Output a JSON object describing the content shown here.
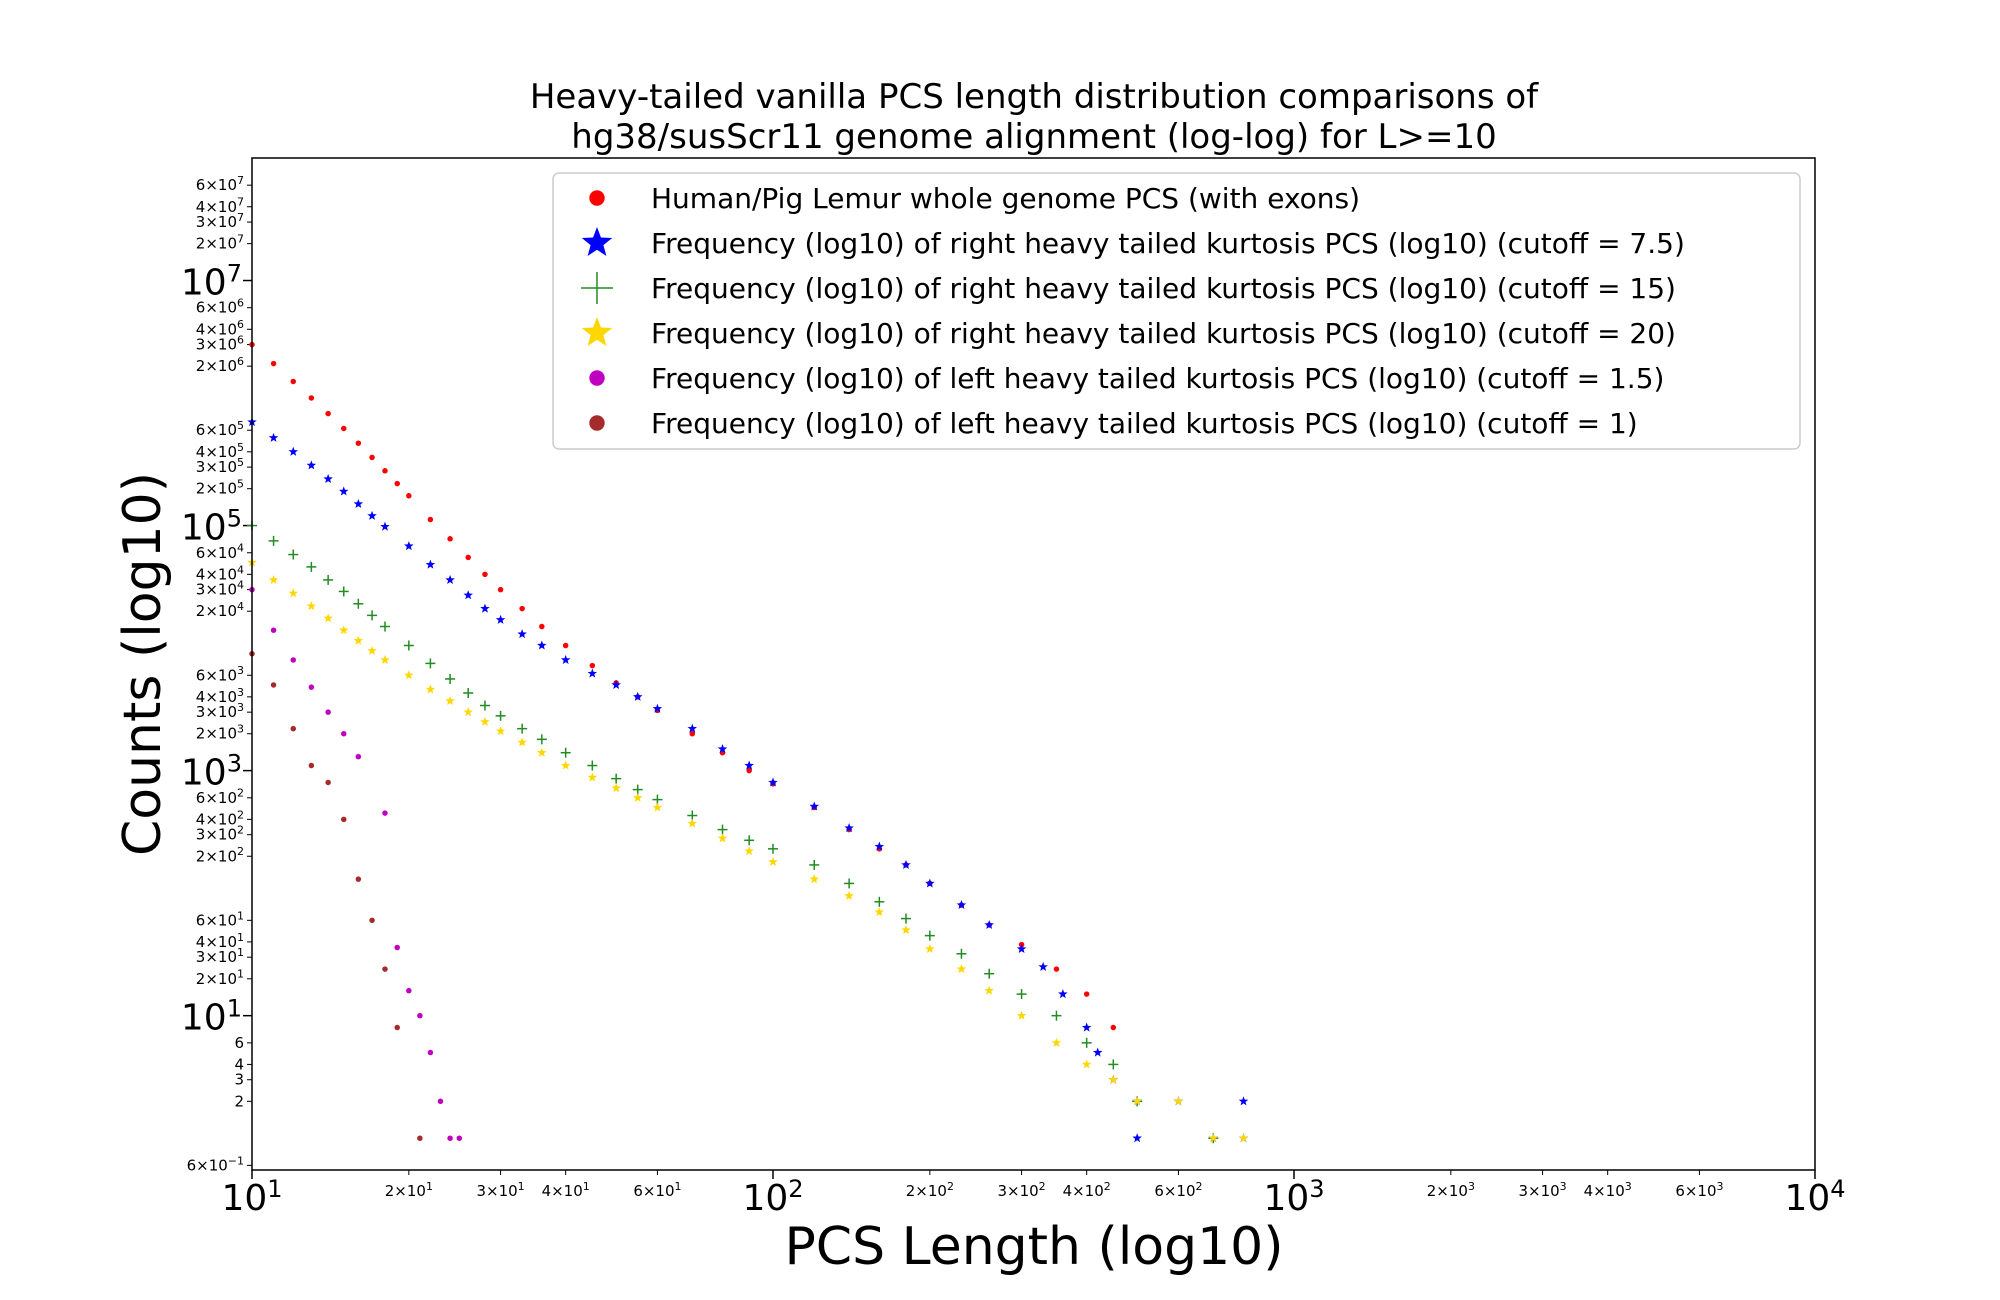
{
  "chart_data": {
    "type": "scatter",
    "title": [
      "Heavy-tailed vanilla PCS length distribution comparisons of",
      "hg38/susScr11 genome alignment (log-log) for L>=10"
    ],
    "xlabel": "PCS Length (log10)",
    "ylabel": "Counts (log10)",
    "xscale": "log",
    "yscale": "log",
    "xlim": [
      10,
      10000
    ],
    "ylim": [
      0.55,
      100000000
    ],
    "legend_position": "top-right",
    "x_ticks_major": [
      {
        "value": 10,
        "base": "10",
        "exp": "1"
      },
      {
        "value": 100,
        "base": "10",
        "exp": "2"
      },
      {
        "value": 1000,
        "base": "10",
        "exp": "3"
      },
      {
        "value": 10000,
        "base": "10",
        "exp": "4"
      }
    ],
    "x_ticks_minor": [
      {
        "value": 20,
        "label": "2×10",
        "exp": "1"
      },
      {
        "value": 30,
        "label": "3×10",
        "exp": "1"
      },
      {
        "value": 40,
        "label": "4×10",
        "exp": "1"
      },
      {
        "value": 60,
        "label": "6×10",
        "exp": "1"
      },
      {
        "value": 200,
        "label": "2×10",
        "exp": "2"
      },
      {
        "value": 300,
        "label": "3×10",
        "exp": "2"
      },
      {
        "value": 400,
        "label": "4×10",
        "exp": "2"
      },
      {
        "value": 600,
        "label": "6×10",
        "exp": "2"
      },
      {
        "value": 2000,
        "label": "2×10",
        "exp": "3"
      },
      {
        "value": 3000,
        "label": "3×10",
        "exp": "3"
      },
      {
        "value": 4000,
        "label": "4×10",
        "exp": "3"
      },
      {
        "value": 6000,
        "label": "6×10",
        "exp": "3"
      }
    ],
    "y_ticks_major": [
      {
        "value": 10,
        "base": "10",
        "exp": "1"
      },
      {
        "value": 1000,
        "base": "10",
        "exp": "3"
      },
      {
        "value": 100000,
        "base": "10",
        "exp": "5"
      },
      {
        "value": 10000000,
        "base": "10",
        "exp": "7"
      }
    ],
    "y_ticks_minor": [
      {
        "value": 0.6,
        "label": "6×10",
        "exp": "−1"
      },
      {
        "value": 2,
        "label": "2",
        "exp": ""
      },
      {
        "value": 3,
        "label": "3",
        "exp": ""
      },
      {
        "value": 4,
        "label": "4",
        "exp": ""
      },
      {
        "value": 6,
        "label": "6",
        "exp": ""
      },
      {
        "value": 20,
        "label": "2×10",
        "exp": "1"
      },
      {
        "value": 30,
        "label": "3×10",
        "exp": "1"
      },
      {
        "value": 40,
        "label": "4×10",
        "exp": "1"
      },
      {
        "value": 60,
        "label": "6×10",
        "exp": "1"
      },
      {
        "value": 200,
        "label": "2×10",
        "exp": "2"
      },
      {
        "value": 300,
        "label": "3×10",
        "exp": "2"
      },
      {
        "value": 400,
        "label": "4×10",
        "exp": "2"
      },
      {
        "value": 600,
        "label": "6×10",
        "exp": "2"
      },
      {
        "value": 2000,
        "label": "2×10",
        "exp": "3"
      },
      {
        "value": 3000,
        "label": "3×10",
        "exp": "3"
      },
      {
        "value": 4000,
        "label": "4×10",
        "exp": "3"
      },
      {
        "value": 6000,
        "label": "6×10",
        "exp": "3"
      },
      {
        "value": 20000,
        "label": "2×10",
        "exp": "4"
      },
      {
        "value": 30000,
        "label": "3×10",
        "exp": "4"
      },
      {
        "value": 40000,
        "label": "4×10",
        "exp": "4"
      },
      {
        "value": 60000,
        "label": "6×10",
        "exp": "4"
      },
      {
        "value": 200000,
        "label": "2×10",
        "exp": "5"
      },
      {
        "value": 300000,
        "label": "3×10",
        "exp": "5"
      },
      {
        "value": 400000,
        "label": "4×10",
        "exp": "5"
      },
      {
        "value": 600000,
        "label": "6×10",
        "exp": "5"
      },
      {
        "value": 2000000,
        "label": "2×10",
        "exp": "6"
      },
      {
        "value": 3000000,
        "label": "3×10",
        "exp": "6"
      },
      {
        "value": 4000000,
        "label": "4×10",
        "exp": "6"
      },
      {
        "value": 6000000,
        "label": "6×10",
        "exp": "6"
      },
      {
        "value": 20000000,
        "label": "2×10",
        "exp": "7"
      },
      {
        "value": 30000000,
        "label": "3×10",
        "exp": "7"
      },
      {
        "value": 40000000,
        "label": "4×10",
        "exp": "7"
      },
      {
        "value": 60000000,
        "label": "6×10",
        "exp": "7"
      }
    ],
    "series": [
      {
        "name": "Human/Pig Lemur whole genome PCS (with exons)",
        "marker": "circle",
        "color": "#ff0000",
        "points": [
          [
            10,
            3000000
          ],
          [
            11,
            2100000
          ],
          [
            12,
            1500000
          ],
          [
            13,
            1100000
          ],
          [
            14,
            820000
          ],
          [
            15,
            620000
          ],
          [
            16,
            470000
          ],
          [
            17,
            360000
          ],
          [
            18,
            280000
          ],
          [
            19,
            220000
          ],
          [
            20,
            175000
          ],
          [
            22,
            112000
          ],
          [
            24,
            78000
          ],
          [
            26,
            55000
          ],
          [
            28,
            40000
          ],
          [
            30,
            30000
          ],
          [
            33,
            21000
          ],
          [
            36,
            15000
          ],
          [
            40,
            10500
          ],
          [
            45,
            7200
          ],
          [
            50,
            5200
          ],
          [
            55,
            4000
          ],
          [
            60,
            3100
          ],
          [
            70,
            2000
          ],
          [
            80,
            1400
          ],
          [
            90,
            1000
          ],
          [
            100,
            780
          ],
          [
            120,
            500
          ],
          [
            140,
            330
          ],
          [
            160,
            230
          ],
          [
            180,
            170
          ],
          [
            200,
            120
          ],
          [
            230,
            80
          ],
          [
            260,
            55
          ],
          [
            300,
            38
          ],
          [
            350,
            24
          ],
          [
            400,
            15
          ],
          [
            450,
            8
          ]
        ]
      },
      {
        "name": "Frequency (log10) of right heavy tailed kurtosis PCS (log10) (cutoff = 7.5)",
        "marker": "star",
        "color": "#0000ff",
        "points": [
          [
            10,
            700000
          ],
          [
            11,
            520000
          ],
          [
            12,
            400000
          ],
          [
            13,
            310000
          ],
          [
            14,
            240000
          ],
          [
            15,
            190000
          ],
          [
            16,
            150000
          ],
          [
            17,
            120000
          ],
          [
            18,
            98000
          ],
          [
            20,
            68000
          ],
          [
            22,
            48000
          ],
          [
            24,
            36000
          ],
          [
            26,
            27000
          ],
          [
            28,
            21000
          ],
          [
            30,
            17000
          ],
          [
            33,
            13000
          ],
          [
            36,
            10500
          ],
          [
            40,
            8000
          ],
          [
            45,
            6200
          ],
          [
            50,
            5000
          ],
          [
            55,
            4000
          ],
          [
            60,
            3200
          ],
          [
            70,
            2200
          ],
          [
            80,
            1500
          ],
          [
            90,
            1100
          ],
          [
            100,
            800
          ],
          [
            120,
            510
          ],
          [
            140,
            340
          ],
          [
            160,
            240
          ],
          [
            180,
            170
          ],
          [
            200,
            120
          ],
          [
            230,
            80
          ],
          [
            260,
            55
          ],
          [
            300,
            35
          ],
          [
            330,
            25
          ],
          [
            360,
            15
          ],
          [
            400,
            8
          ],
          [
            420,
            5
          ],
          [
            450,
            3
          ],
          [
            500,
            2
          ],
          [
            600,
            2
          ],
          [
            800,
            2
          ],
          [
            500,
            1
          ],
          [
            700,
            1
          ],
          [
            800,
            1
          ]
        ]
      },
      {
        "name": "Frequency (log10) of right heavy tailed kurtosis PCS (log10) (cutoff = 15)",
        "marker": "plus",
        "color": "#228b22",
        "points": [
          [
            10,
            100000
          ],
          [
            11,
            75000
          ],
          [
            12,
            58000
          ],
          [
            13,
            46000
          ],
          [
            14,
            36000
          ],
          [
            15,
            29000
          ],
          [
            16,
            23000
          ],
          [
            17,
            18500
          ],
          [
            18,
            15000
          ],
          [
            20,
            10500
          ],
          [
            22,
            7500
          ],
          [
            24,
            5600
          ],
          [
            26,
            4300
          ],
          [
            28,
            3400
          ],
          [
            30,
            2800
          ],
          [
            33,
            2200
          ],
          [
            36,
            1800
          ],
          [
            40,
            1400
          ],
          [
            45,
            1100
          ],
          [
            50,
            860
          ],
          [
            55,
            700
          ],
          [
            60,
            580
          ],
          [
            70,
            430
          ],
          [
            80,
            330
          ],
          [
            90,
            270
          ],
          [
            100,
            230
          ],
          [
            120,
            170
          ],
          [
            140,
            120
          ],
          [
            160,
            85
          ],
          [
            180,
            62
          ],
          [
            200,
            45
          ],
          [
            230,
            32
          ],
          [
            260,
            22
          ],
          [
            300,
            15
          ],
          [
            350,
            10
          ],
          [
            400,
            6
          ],
          [
            450,
            4
          ],
          [
            500,
            2
          ],
          [
            700,
            1
          ]
        ]
      },
      {
        "name": "Frequency (log10) of right heavy tailed kurtosis PCS (log10) (cutoff = 20)",
        "marker": "star",
        "color": "#ffd700",
        "points": [
          [
            10,
            50000
          ],
          [
            11,
            36000
          ],
          [
            12,
            28000
          ],
          [
            13,
            22000
          ],
          [
            14,
            17500
          ],
          [
            15,
            14000
          ],
          [
            16,
            11500
          ],
          [
            17,
            9500
          ],
          [
            18,
            8000
          ],
          [
            20,
            6000
          ],
          [
            22,
            4600
          ],
          [
            24,
            3700
          ],
          [
            26,
            3000
          ],
          [
            28,
            2500
          ],
          [
            30,
            2100
          ],
          [
            33,
            1700
          ],
          [
            36,
            1400
          ],
          [
            40,
            1100
          ],
          [
            45,
            880
          ],
          [
            50,
            720
          ],
          [
            55,
            600
          ],
          [
            60,
            500
          ],
          [
            70,
            370
          ],
          [
            80,
            280
          ],
          [
            90,
            220
          ],
          [
            100,
            180
          ],
          [
            120,
            130
          ],
          [
            140,
            95
          ],
          [
            160,
            70
          ],
          [
            180,
            50
          ],
          [
            200,
            35
          ],
          [
            230,
            24
          ],
          [
            260,
            16
          ],
          [
            300,
            10
          ],
          [
            350,
            6
          ],
          [
            400,
            4
          ],
          [
            450,
            3
          ],
          [
            500,
            2
          ],
          [
            600,
            2
          ],
          [
            700,
            1
          ],
          [
            800,
            1
          ]
        ]
      },
      {
        "name": "Frequency (log10) of left heavy tailed kurtosis PCS (log10) (cutoff = 1.5)",
        "marker": "circle",
        "color": "#bf00bf",
        "points": [
          [
            10,
            30000
          ],
          [
            11,
            14000
          ],
          [
            12,
            8000
          ],
          [
            13,
            4800
          ],
          [
            14,
            3000
          ],
          [
            15,
            2000
          ],
          [
            16,
            1300
          ],
          [
            18,
            450
          ],
          [
            19,
            36
          ],
          [
            20,
            16
          ],
          [
            21,
            10
          ],
          [
            22,
            5
          ],
          [
            23,
            2
          ],
          [
            24,
            1
          ],
          [
            25,
            1
          ]
        ]
      },
      {
        "name": "Frequency (log10) of left heavy tailed kurtosis PCS (log10) (cutoff = 1)",
        "marker": "circle",
        "color": "#a52a2a",
        "points": [
          [
            10,
            9000
          ],
          [
            11,
            5000
          ],
          [
            12,
            2200
          ],
          [
            13,
            1100
          ],
          [
            14,
            800
          ],
          [
            15,
            400
          ],
          [
            16,
            130
          ],
          [
            17,
            60
          ],
          [
            18,
            24
          ],
          [
            19,
            8
          ],
          [
            21,
            1
          ]
        ]
      }
    ]
  }
}
